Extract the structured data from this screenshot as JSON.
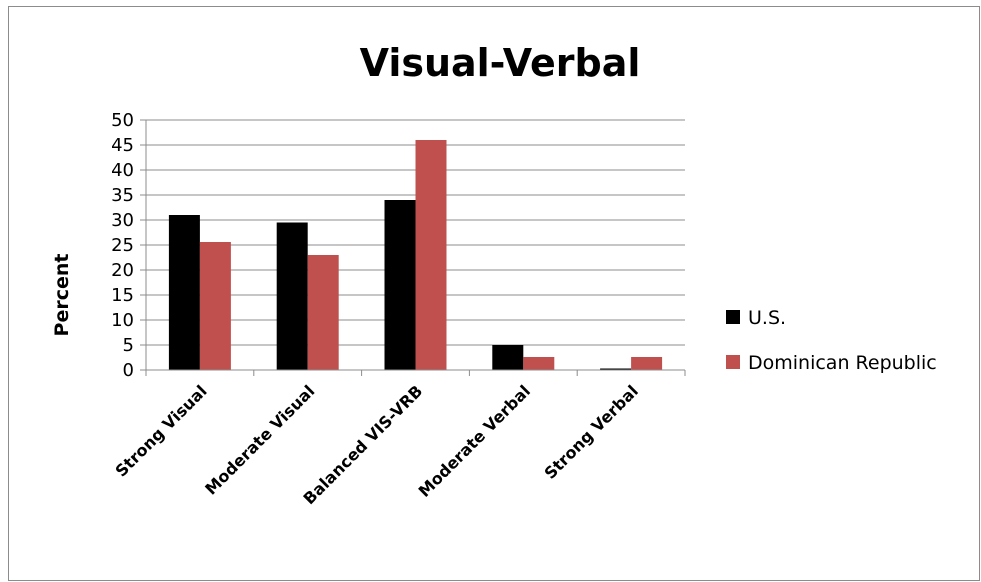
{
  "chart_data": {
    "type": "bar",
    "title": "Visual-Verbal",
    "xlabel": "",
    "ylabel": "Percent",
    "ylim": [
      0,
      50
    ],
    "yticks": [
      "0",
      "5",
      "10",
      "15",
      "20",
      "25",
      "30",
      "35",
      "40",
      "45",
      "50"
    ],
    "grid": true,
    "legend_position": "right",
    "categories": [
      "Strong Visual",
      "Moderate Visual",
      "Balanced VIS-VRB",
      "Moderate Verbal",
      "Strong Verbal"
    ],
    "series": [
      {
        "name": "U.S.",
        "color": "#000000",
        "values": [
          31,
          29.5,
          34,
          5,
          0.3
        ]
      },
      {
        "name": "Dominican Republic",
        "color": "#c0504d",
        "values": [
          25.6,
          23,
          46,
          2.6,
          2.6
        ]
      }
    ]
  }
}
